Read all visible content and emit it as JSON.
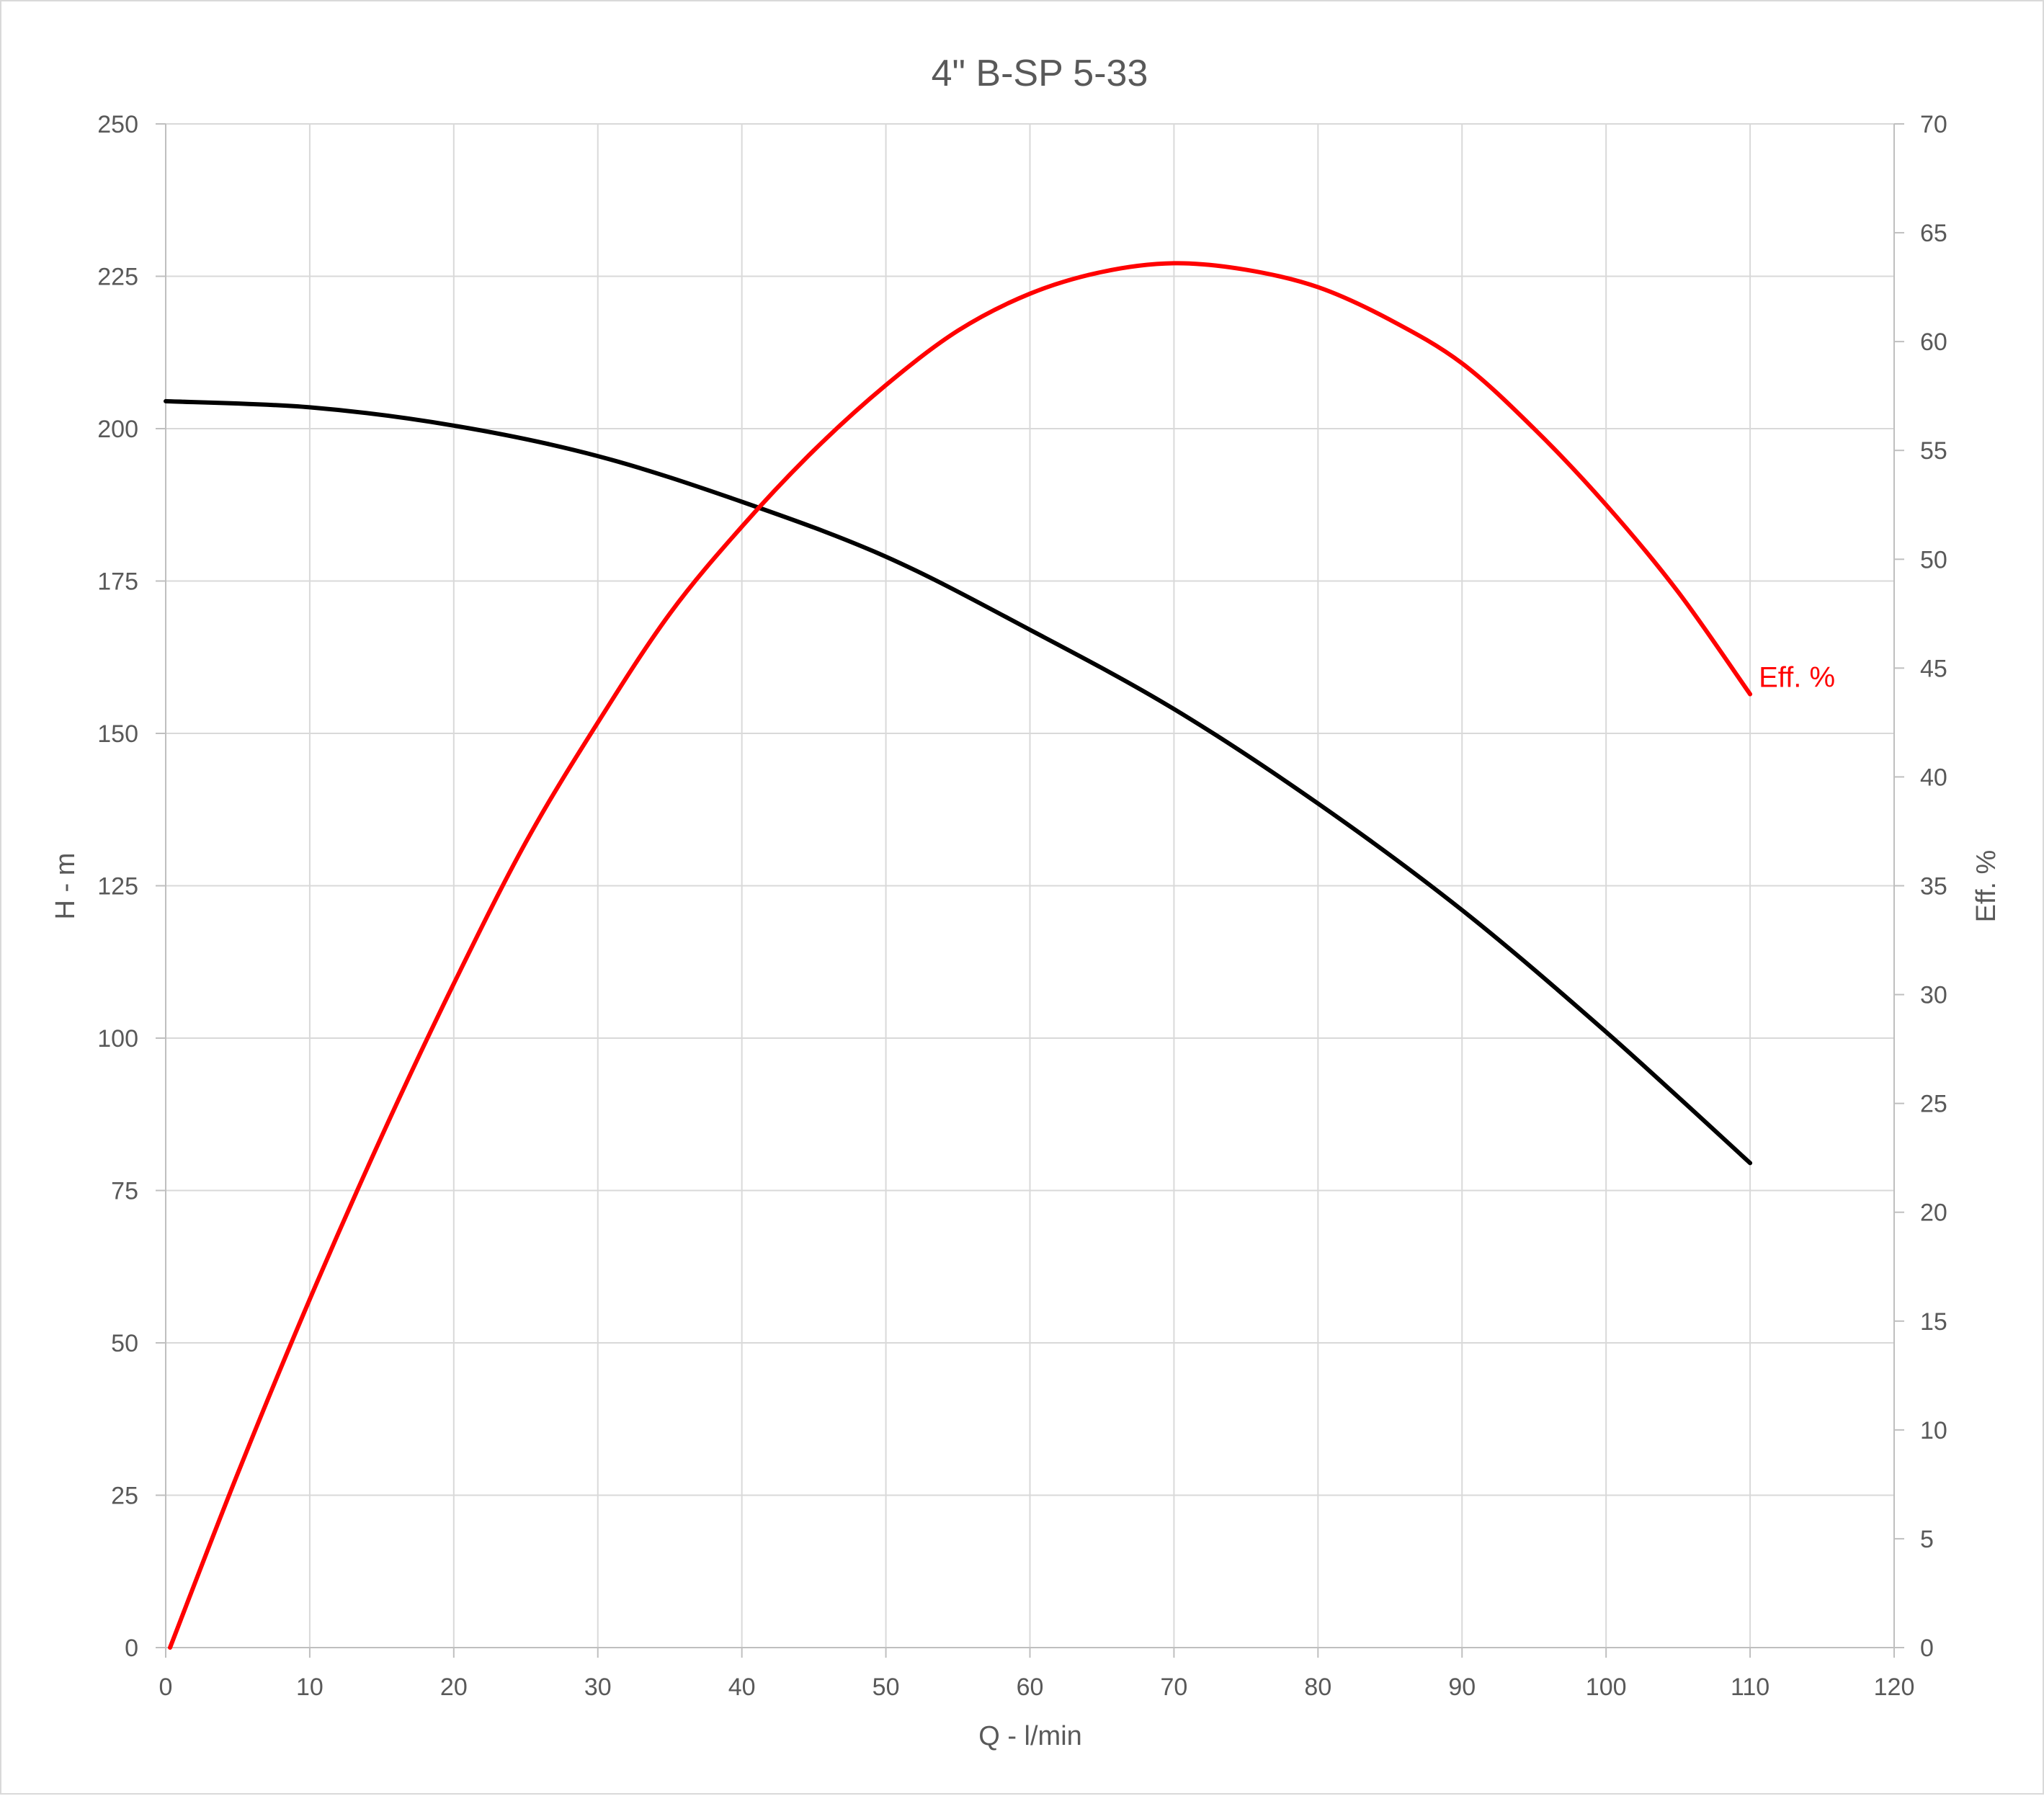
{
  "chart_data": {
    "type": "line",
    "title": "4\" B-SP 5-33",
    "xlabel": "Q - l/min",
    "ylabel": "H - m",
    "y2label": "Eff. %",
    "xlim": [
      0,
      120
    ],
    "ylim": [
      0,
      250
    ],
    "y2lim": [
      0,
      70
    ],
    "xticks": [
      0,
      10,
      20,
      30,
      40,
      50,
      60,
      70,
      80,
      90,
      100,
      110,
      120
    ],
    "yticks": [
      0,
      25,
      50,
      75,
      100,
      125,
      150,
      175,
      200,
      225,
      250
    ],
    "y2ticks": [
      0,
      5,
      10,
      15,
      20,
      25,
      30,
      35,
      40,
      45,
      50,
      55,
      60,
      65,
      70
    ],
    "grid": true,
    "legend": "none",
    "series": [
      {
        "name": "",
        "axis": "left",
        "color": "#000000",
        "x": [
          0,
          10,
          20,
          30,
          40,
          50,
          60,
          70,
          80,
          90,
          100,
          110
        ],
        "y": [
          204.5,
          203.5,
          200.5,
          195.5,
          188,
          179,
          167,
          154,
          138.5,
          121,
          101,
          79.5
        ]
      },
      {
        "name": "Eff. %",
        "axis": "right",
        "color": "#ff0000",
        "x": [
          0.3,
          5,
          10,
          15,
          20,
          25,
          30,
          35,
          40,
          45,
          50,
          55,
          60,
          65,
          70,
          75,
          80,
          85,
          90,
          95,
          100,
          105,
          110
        ],
        "y": [
          0,
          8,
          16,
          23.5,
          30.5,
          37,
          42.5,
          47.5,
          51.5,
          55,
          58,
          60.5,
          62.2,
          63.2,
          63.6,
          63.3,
          62.5,
          61,
          59,
          56,
          52.5,
          48.5,
          43.8
        ]
      }
    ]
  }
}
